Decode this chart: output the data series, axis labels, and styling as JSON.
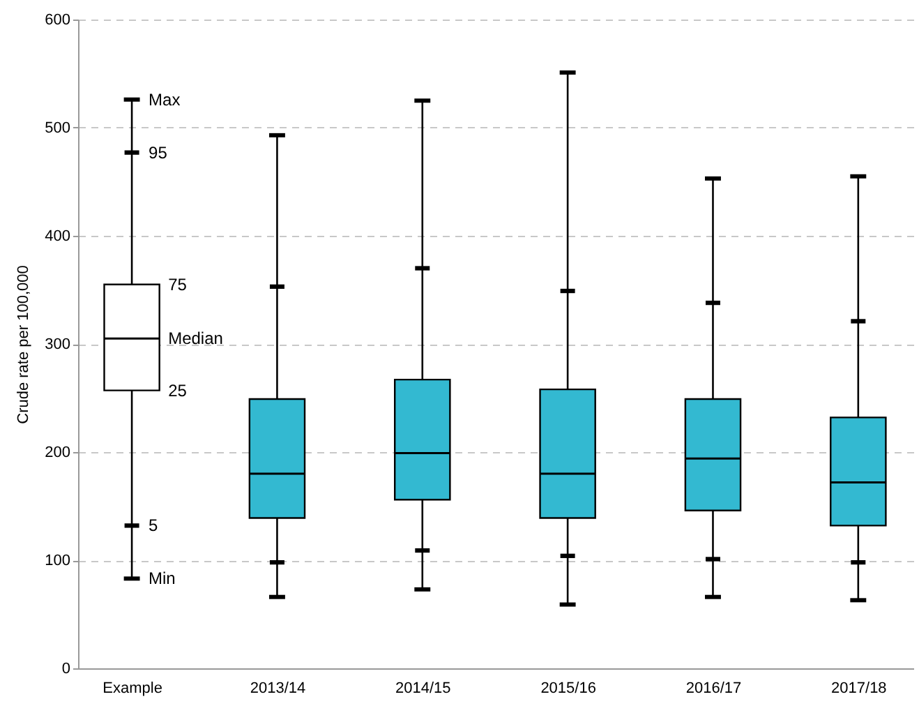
{
  "chart_data": {
    "type": "box",
    "ylabel": "Crude rate per 100,000",
    "categories": [
      "Example",
      "2013/14",
      "2014/15",
      "2015/16",
      "2016/17",
      "2017/18"
    ],
    "boxes": [
      {
        "low": 83,
        "q1": 257,
        "median": 305,
        "q3": 355,
        "high": 526
      },
      {
        "low": 66,
        "q1": 139,
        "median": 180,
        "q3": 249,
        "high": 493
      },
      {
        "low": 73,
        "q1": 156,
        "median": 199,
        "q3": 267,
        "high": 525
      },
      {
        "low": 59,
        "q1": 139,
        "median": 180,
        "q3": 258,
        "high": 551
      },
      {
        "low": 66,
        "q1": 146,
        "median": 194,
        "q3": 249,
        "high": 453
      },
      {
        "low": 63,
        "q1": 132,
        "median": 172,
        "q3": 232,
        "high": 455
      }
    ],
    "colors": [
      "#ffffff",
      "#33b9d1",
      "#33b9d1",
      "#33b9d1",
      "#33b9d1",
      "#33b9d1"
    ],
    "series": [
      {
        "type": "scatter",
        "color": "#000000",
        "x": [
          "Example",
          "2013/14",
          "2014/15",
          "2015/16",
          "2016/17",
          "2017/18"
        ],
        "values": [
          477,
          353,
          370,
          349,
          338,
          321
        ]
      },
      {
        "type": "scatter",
        "color": "#000000",
        "x": [
          "Example",
          "2013/14",
          "2014/15",
          "2015/16",
          "2016/17",
          "2017/18"
        ],
        "values": [
          132,
          98,
          109,
          104,
          101,
          98
        ]
      }
    ],
    "annotations": [
      {
        "text": "Max",
        "x": "Example",
        "y": 526
      },
      {
        "text": "95",
        "x": "Example",
        "y": 477
      },
      {
        "text": "75",
        "x": "Example",
        "y": 355
      },
      {
        "text": "Median",
        "x": "Example",
        "y": 305
      },
      {
        "text": "25",
        "x": "Example",
        "y": 257
      },
      {
        "text": "5",
        "x": "Example",
        "y": 132
      },
      {
        "text": "Min",
        "x": "Example",
        "y": 83
      }
    ],
    "ylim": [
      0,
      600
    ],
    "yticks": [
      0,
      100,
      200,
      300,
      400,
      500,
      600
    ],
    "grid": "y"
  }
}
